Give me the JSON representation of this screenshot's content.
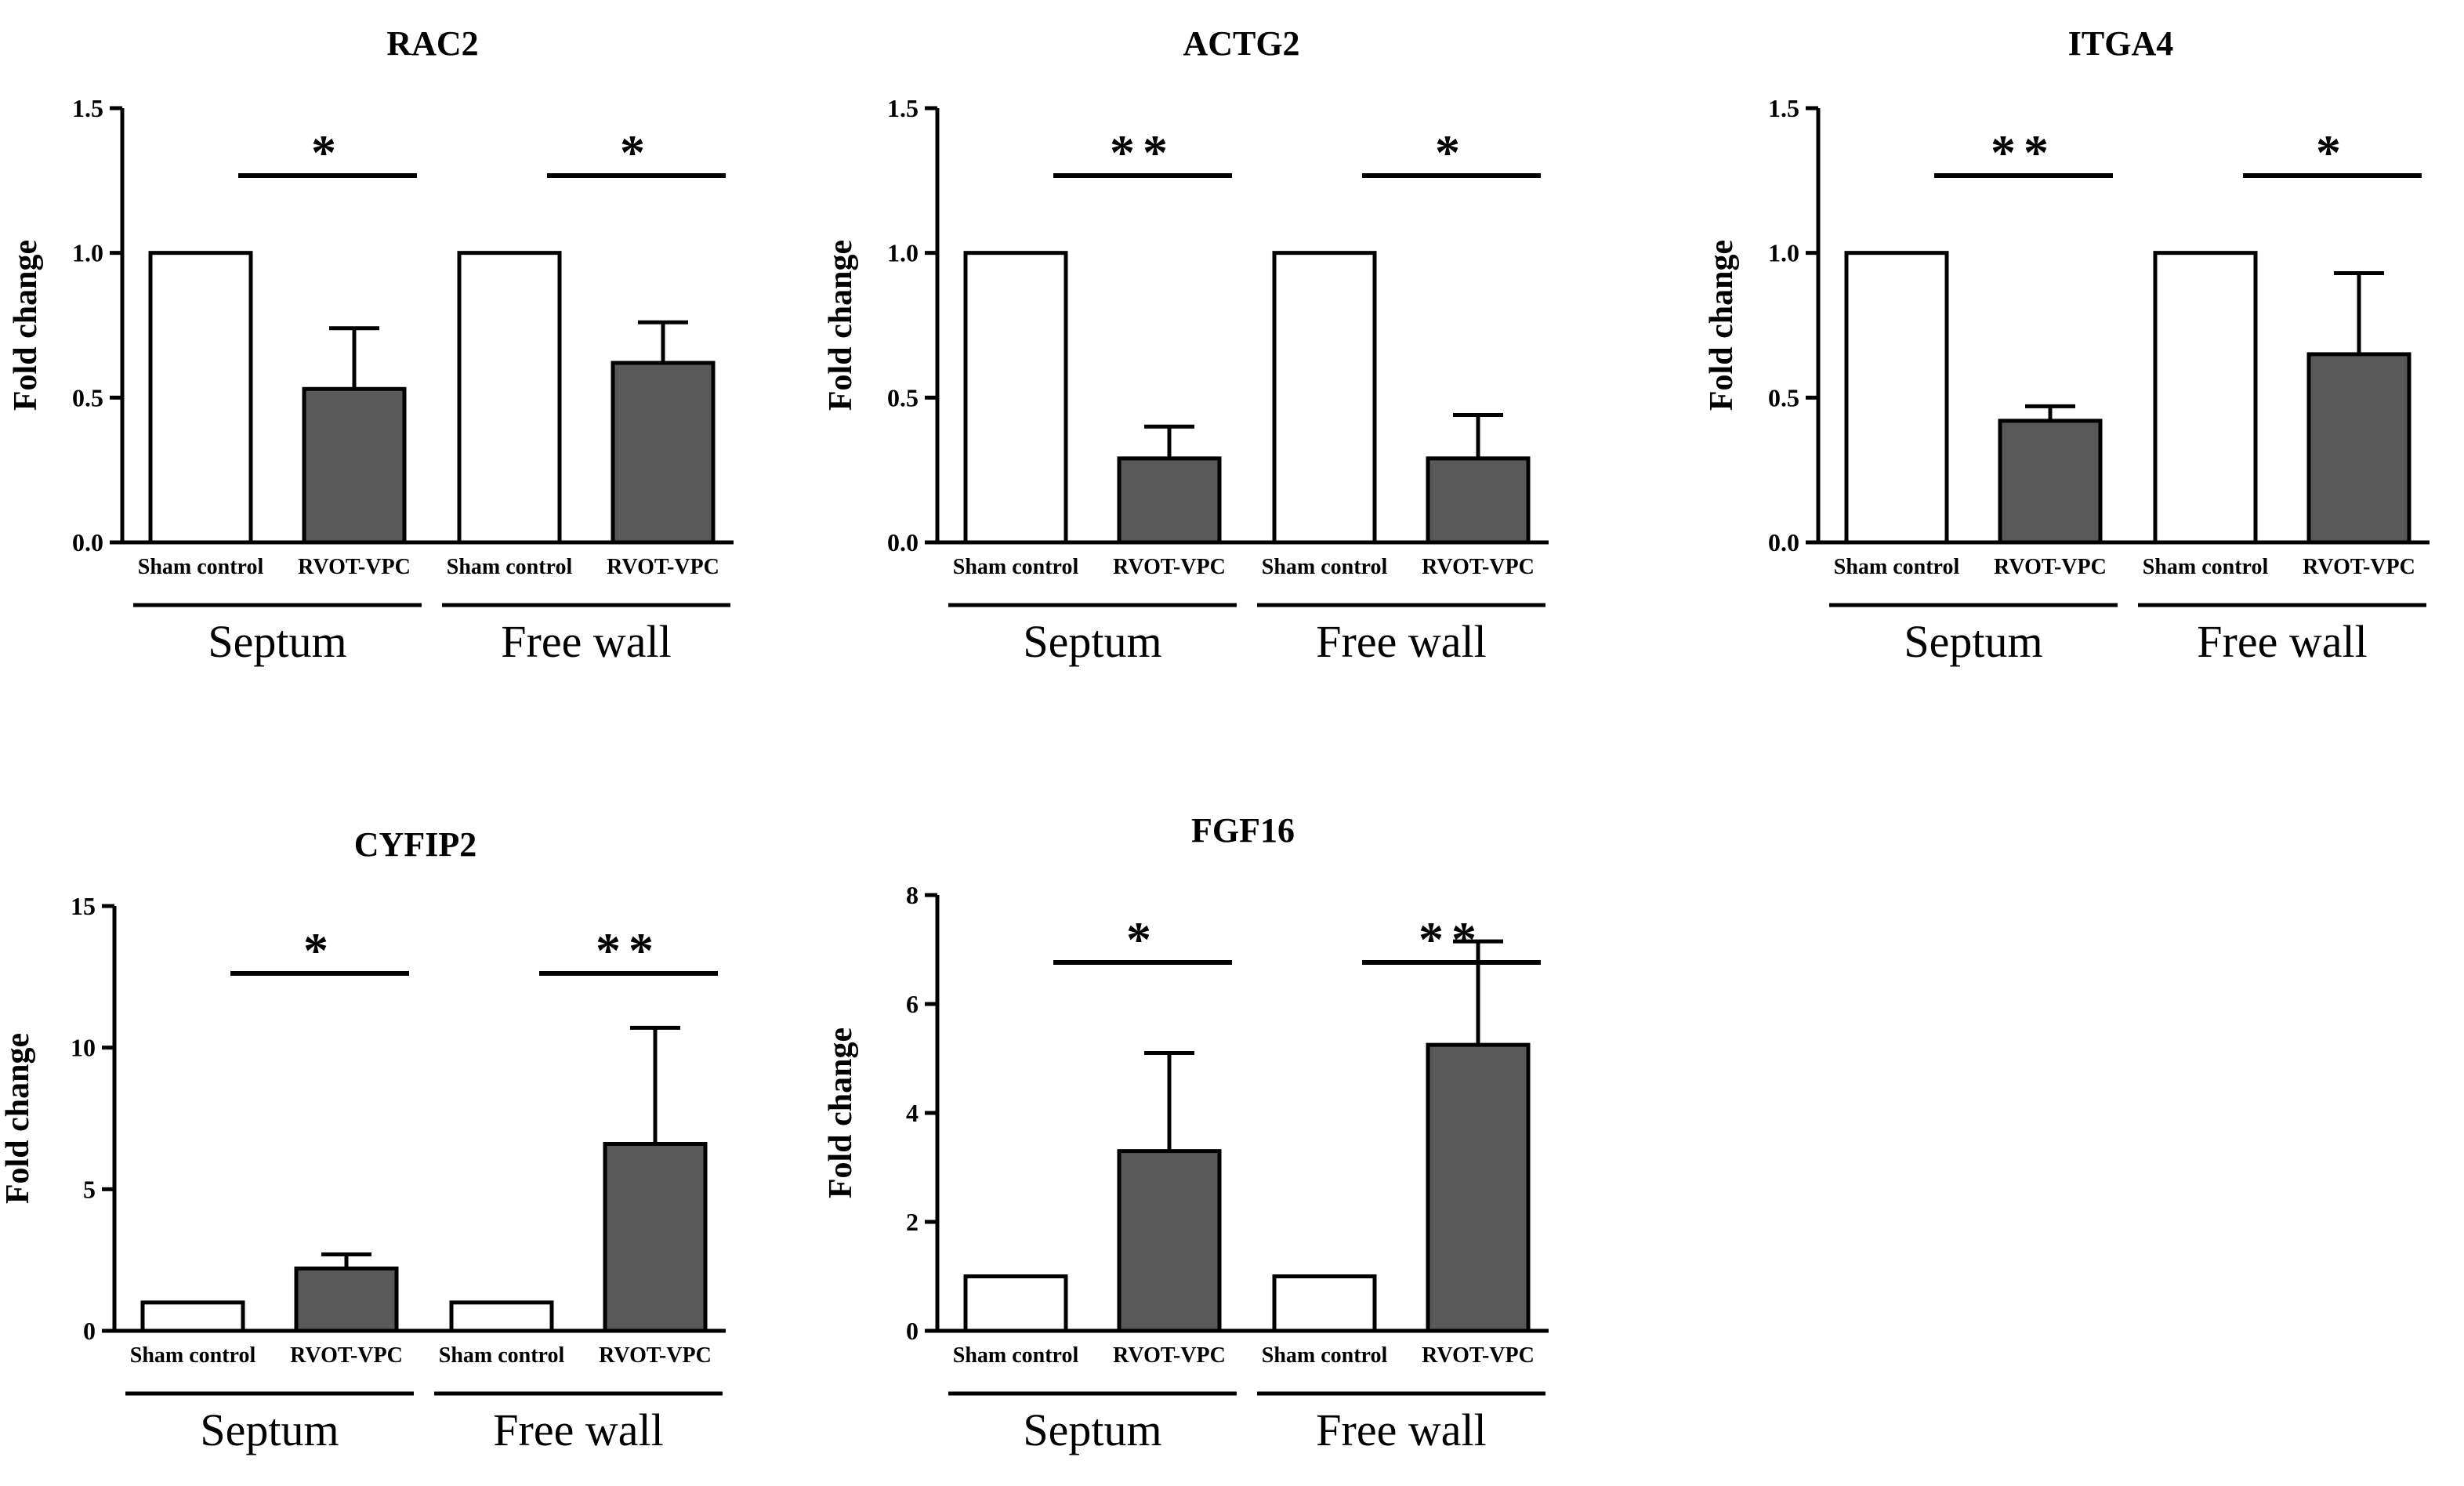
{
  "chart_data": [
    {
      "type": "bar",
      "title": "RAC2",
      "ylabel": "Fold change",
      "ylim": [
        0,
        1.5
      ],
      "yticks": [
        "0.0",
        "0.5",
        "1.0",
        "1.5"
      ],
      "categories": [
        "Sham control",
        "RVOT-VPC",
        "Sham control",
        "RVOT-VPC"
      ],
      "groups": [
        "Septum",
        "Free wall"
      ],
      "values": [
        1.0,
        0.53,
        1.0,
        0.62
      ],
      "errors": [
        0,
        0.21,
        0,
        0.14
      ],
      "significance": [
        "*",
        "*"
      ],
      "colors": [
        "#ffffff",
        "#595959",
        "#ffffff",
        "#595959"
      ]
    },
    {
      "type": "bar",
      "title": "ACTG2",
      "ylabel": "Fold change",
      "ylim": [
        0,
        1.5
      ],
      "yticks": [
        "0.0",
        "0.5",
        "1.0",
        "1.5"
      ],
      "categories": [
        "Sham control",
        "RVOT-VPC",
        "Sham control",
        "RVOT-VPC"
      ],
      "groups": [
        "Septum",
        "Free wall"
      ],
      "values": [
        1.0,
        0.29,
        1.0,
        0.29
      ],
      "errors": [
        0,
        0.11,
        0,
        0.15
      ],
      "significance": [
        "**",
        "*"
      ],
      "colors": [
        "#ffffff",
        "#595959",
        "#ffffff",
        "#595959"
      ]
    },
    {
      "type": "bar",
      "title": "ITGA4",
      "ylabel": "Fold change",
      "ylim": [
        0,
        1.5
      ],
      "yticks": [
        "0.0",
        "0.5",
        "1.0",
        "1.5"
      ],
      "categories": [
        "Sham control",
        "RVOT-VPC",
        "Sham control",
        "RVOT-VPC"
      ],
      "groups": [
        "Septum",
        "Free wall"
      ],
      "values": [
        1.0,
        0.42,
        1.0,
        0.65
      ],
      "errors": [
        0,
        0.05,
        0,
        0.28
      ],
      "significance": [
        "**",
        "*"
      ],
      "colors": [
        "#ffffff",
        "#595959",
        "#ffffff",
        "#595959"
      ]
    },
    {
      "type": "bar",
      "title": "CYFIP2",
      "ylabel": "Fold change",
      "ylim": [
        0,
        15
      ],
      "yticks": [
        "0",
        "5",
        "10",
        "15"
      ],
      "categories": [
        "Sham control",
        "RVOT-VPC",
        "Sham control",
        "RVOT-VPC"
      ],
      "groups": [
        "Septum",
        "Free wall"
      ],
      "values": [
        1.0,
        2.2,
        1.0,
        6.6
      ],
      "errors": [
        0,
        0.5,
        0,
        4.1
      ],
      "significance": [
        "*",
        "**"
      ],
      "colors": [
        "#ffffff",
        "#595959",
        "#ffffff",
        "#595959"
      ]
    },
    {
      "type": "bar",
      "title": "FGF16",
      "ylabel": "Fold change",
      "ylim": [
        0,
        8
      ],
      "yticks": [
        "0",
        "2",
        "4",
        "6",
        "8"
      ],
      "categories": [
        "Sham control",
        "RVOT-VPC",
        "Sham control",
        "RVOT-VPC"
      ],
      "groups": [
        "Septum",
        "Free wall"
      ],
      "values": [
        1.0,
        3.3,
        1.0,
        5.25
      ],
      "errors": [
        0,
        1.8,
        0,
        1.9
      ],
      "significance": [
        "*",
        "**"
      ],
      "colors": [
        "#ffffff",
        "#595959",
        "#ffffff",
        "#595959"
      ]
    }
  ]
}
